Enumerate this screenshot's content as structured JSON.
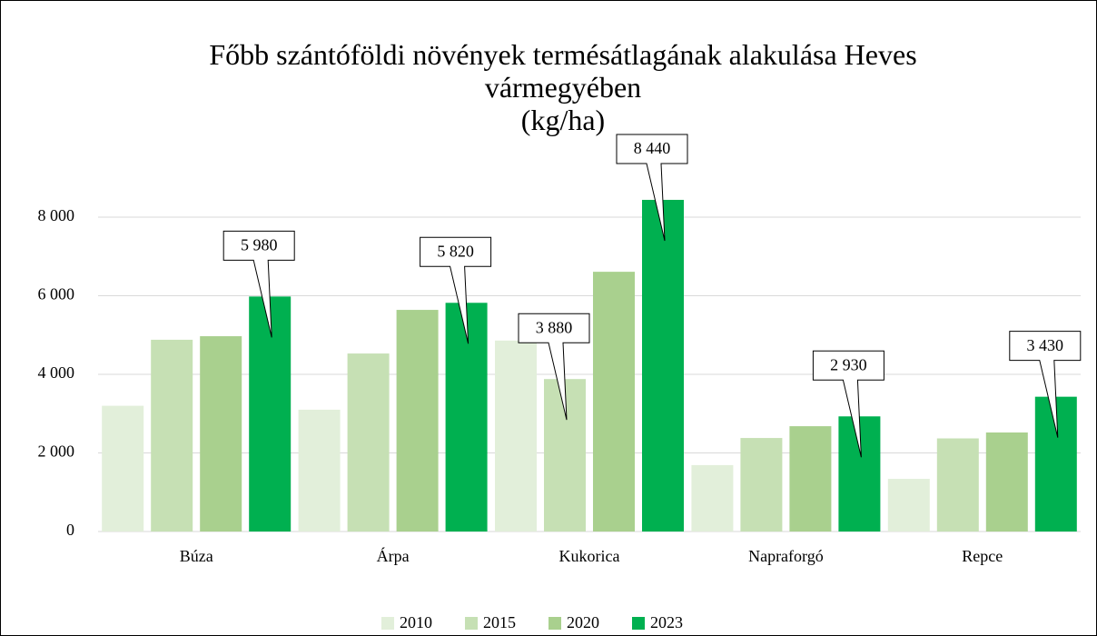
{
  "chart_data": {
    "type": "bar",
    "title": "Főbb szántóföldi növények termésátlagának alakulása Heves vármegyében",
    "subtitle": "(kg/ha)",
    "categories": [
      "Búza",
      "Árpa",
      "Kukorica",
      "Napraforgó",
      "Repce"
    ],
    "series": [
      {
        "name": "2010",
        "color": "#e2efda",
        "values": [
          3200,
          3100,
          4860,
          1690,
          1340
        ]
      },
      {
        "name": "2015",
        "color": "#c6e0b4",
        "values": [
          4880,
          4530,
          3880,
          2380,
          2370
        ],
        "value_labels": [
          null,
          null,
          "3 880",
          null,
          null
        ]
      },
      {
        "name": "2020",
        "color": "#a9d08e",
        "values": [
          4970,
          5640,
          6610,
          2680,
          2520
        ]
      },
      {
        "name": "2023",
        "color": "#00b050",
        "values": [
          5980,
          5820,
          8440,
          2930,
          3430
        ],
        "value_labels": [
          "5 980",
          "5 820",
          "8 440",
          "2 930",
          "3 430"
        ]
      }
    ],
    "ylim": [
      0,
      8000
    ],
    "yticks": [
      0,
      {
        "value": 2000,
        "label": "2 000"
      },
      {
        "value": 4000,
        "label": "4 000"
      },
      {
        "value": 6000,
        "label": "6 000"
      },
      {
        "value": 8000,
        "label": "8 000"
      }
    ],
    "grid": true,
    "legend": "bottom"
  }
}
